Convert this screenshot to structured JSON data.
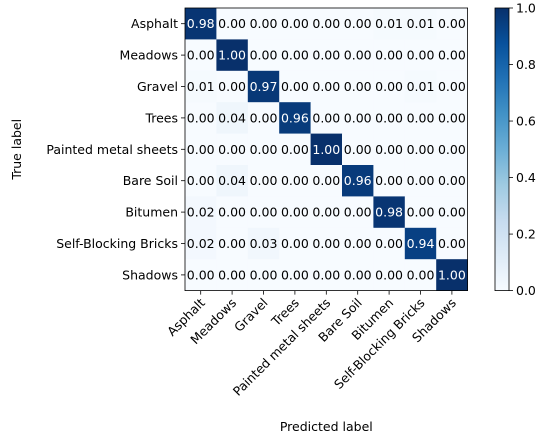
{
  "chart_data": {
    "type": "heatmap",
    "title": "",
    "xlabel": "Predicted label",
    "ylabel": "True label",
    "categories": [
      "Asphalt",
      "Meadows",
      "Gravel",
      "Trees",
      "Painted metal sheets",
      "Bare Soil",
      "Bitumen",
      "Self-Blocking Bricks",
      "Shadows"
    ],
    "matrix": [
      [
        0.98,
        0.0,
        0.0,
        0.0,
        0.0,
        0.0,
        0.01,
        0.01,
        0.0
      ],
      [
        0.0,
        1.0,
        0.0,
        0.0,
        0.0,
        0.0,
        0.0,
        0.0,
        0.0
      ],
      [
        0.01,
        0.0,
        0.97,
        0.0,
        0.0,
        0.0,
        0.0,
        0.01,
        0.0
      ],
      [
        0.0,
        0.04,
        0.0,
        0.96,
        0.0,
        0.0,
        0.0,
        0.0,
        0.0
      ],
      [
        0.0,
        0.0,
        0.0,
        0.0,
        1.0,
        0.0,
        0.0,
        0.0,
        0.0
      ],
      [
        0.0,
        0.04,
        0.0,
        0.0,
        0.0,
        0.96,
        0.0,
        0.0,
        0.0
      ],
      [
        0.02,
        0.0,
        0.0,
        0.0,
        0.0,
        0.0,
        0.98,
        0.0,
        0.0
      ],
      [
        0.02,
        0.0,
        0.03,
        0.0,
        0.0,
        0.0,
        0.0,
        0.94,
        0.0
      ],
      [
        0.0,
        0.0,
        0.0,
        0.0,
        0.0,
        0.0,
        0.0,
        0.0,
        1.0
      ]
    ],
    "value_range": [
      0.0,
      1.0
    ],
    "colorbar_ticks": [
      "0.0",
      "0.2",
      "0.4",
      "0.6",
      "0.8",
      "1.0"
    ],
    "colormap": [
      "#f7fbff",
      "#deebf7",
      "#c6dbef",
      "#9ecae1",
      "#6baed6",
      "#4292c6",
      "#2171b5",
      "#08519c",
      "#08306b"
    ],
    "grid": false,
    "legend": "colorbar-right"
  }
}
